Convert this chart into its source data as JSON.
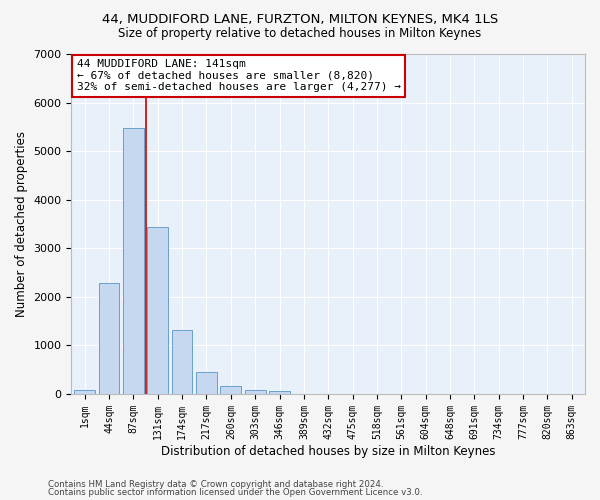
{
  "title": "44, MUDDIFORD LANE, FURZTON, MILTON KEYNES, MK4 1LS",
  "subtitle": "Size of property relative to detached houses in Milton Keynes",
  "xlabel": "Distribution of detached houses by size in Milton Keynes",
  "ylabel": "Number of detached properties",
  "bar_color": "#c5d8f0",
  "bar_edge_color": "#6aa0cc",
  "background_color": "#e8f0fa",
  "grid_color": "#ffffff",
  "annotation_box_color": "#cc0000",
  "vline_color": "#cc0000",
  "annotation_title": "44 MUDDIFORD LANE: 141sqm",
  "annotation_line1": "← 67% of detached houses are smaller (8,820)",
  "annotation_line2": "32% of semi-detached houses are larger (4,277) →",
  "categories": [
    "1sqm",
    "44sqm",
    "87sqm",
    "131sqm",
    "174sqm",
    "217sqm",
    "260sqm",
    "303sqm",
    "346sqm",
    "389sqm",
    "432sqm",
    "475sqm",
    "518sqm",
    "561sqm",
    "604sqm",
    "648sqm",
    "691sqm",
    "734sqm",
    "777sqm",
    "820sqm",
    "863sqm"
  ],
  "values": [
    80,
    2280,
    5480,
    3430,
    1310,
    460,
    160,
    90,
    60,
    0,
    0,
    0,
    0,
    0,
    0,
    0,
    0,
    0,
    0,
    0,
    0
  ],
  "ylim": [
    0,
    7000
  ],
  "yticks": [
    0,
    1000,
    2000,
    3000,
    4000,
    5000,
    6000,
    7000
  ],
  "vline_pos": 2.5,
  "footnote1": "Contains HM Land Registry data © Crown copyright and database right 2024.",
  "footnote2": "Contains public sector information licensed under the Open Government Licence v3.0."
}
